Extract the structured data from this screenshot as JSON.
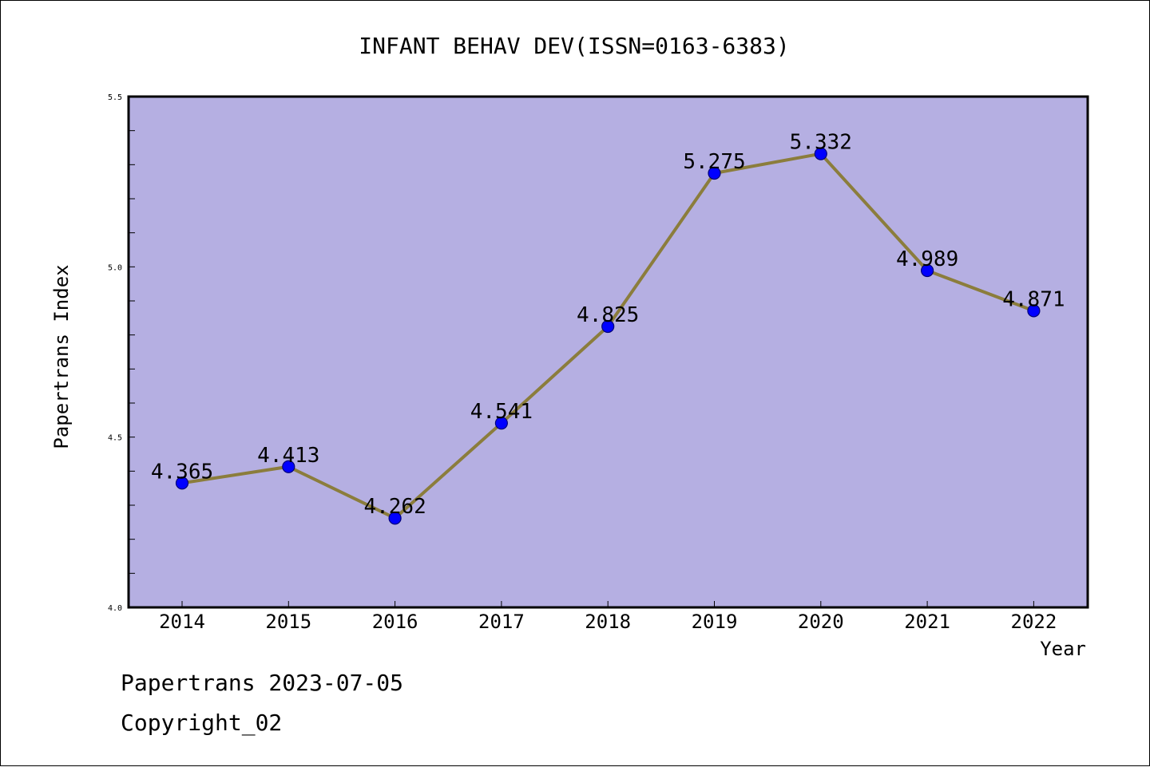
{
  "chart_data": {
    "type": "line",
    "title": "INFANT BEHAV DEV(ISSN=0163-6383)",
    "xlabel": "Year",
    "ylabel": "Papertrans Index",
    "categories": [
      "2014",
      "2015",
      "2016",
      "2017",
      "2018",
      "2019",
      "2020",
      "2021",
      "2022"
    ],
    "values": [
      4.365,
      4.413,
      4.262,
      4.541,
      4.825,
      5.275,
      5.332,
      4.989,
      4.871
    ],
    "data_labels": [
      "4.365",
      "4.413",
      "4.262",
      "4.541",
      "4.825",
      "5.275",
      "5.332",
      "4.989",
      "4.871"
    ],
    "ylim": [
      4.0,
      5.5
    ],
    "y_ticks": [
      "4.0",
      "4.5",
      "5.0",
      "5.5"
    ],
    "y_minor_step": 0.1,
    "grid": false,
    "colors": {
      "plot_background": "#b5afe2",
      "line": "#8b7d3c",
      "marker": "#0000ff",
      "marker_edge": "#00007a"
    }
  },
  "footer": {
    "line1": "Papertrans 2023-07-05",
    "line2": "Copyright_02"
  }
}
